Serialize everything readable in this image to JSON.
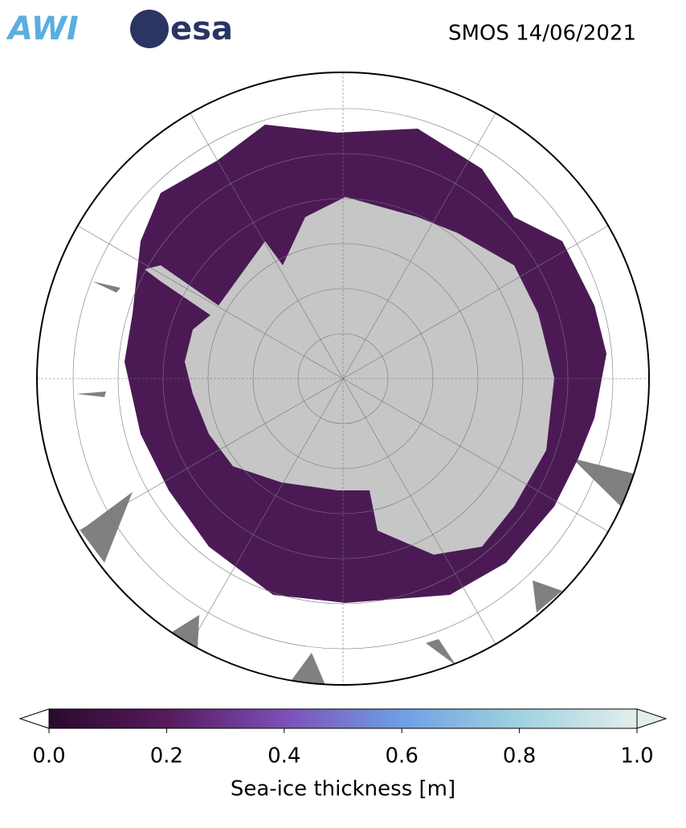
{
  "logos": [
    "AWI",
    "esa"
  ],
  "title": "SMOS 14/06/2021",
  "colorbar": {
    "label": "Sea-ice thickness [m]",
    "lim": [
      0,
      1
    ],
    "ticks": [
      {
        "value": 0,
        "label": "0.0"
      },
      0.2,
      0.4,
      0.6,
      0.8,
      {
        "value": 1,
        "label": "1.0"
      }
    ],
    "colors": [
      "#2a0a2c",
      "#561a5c",
      "#7c4fb8",
      "#6f9fe4",
      "#9fd2e0",
      "#e4eeec"
    ]
  }
}
